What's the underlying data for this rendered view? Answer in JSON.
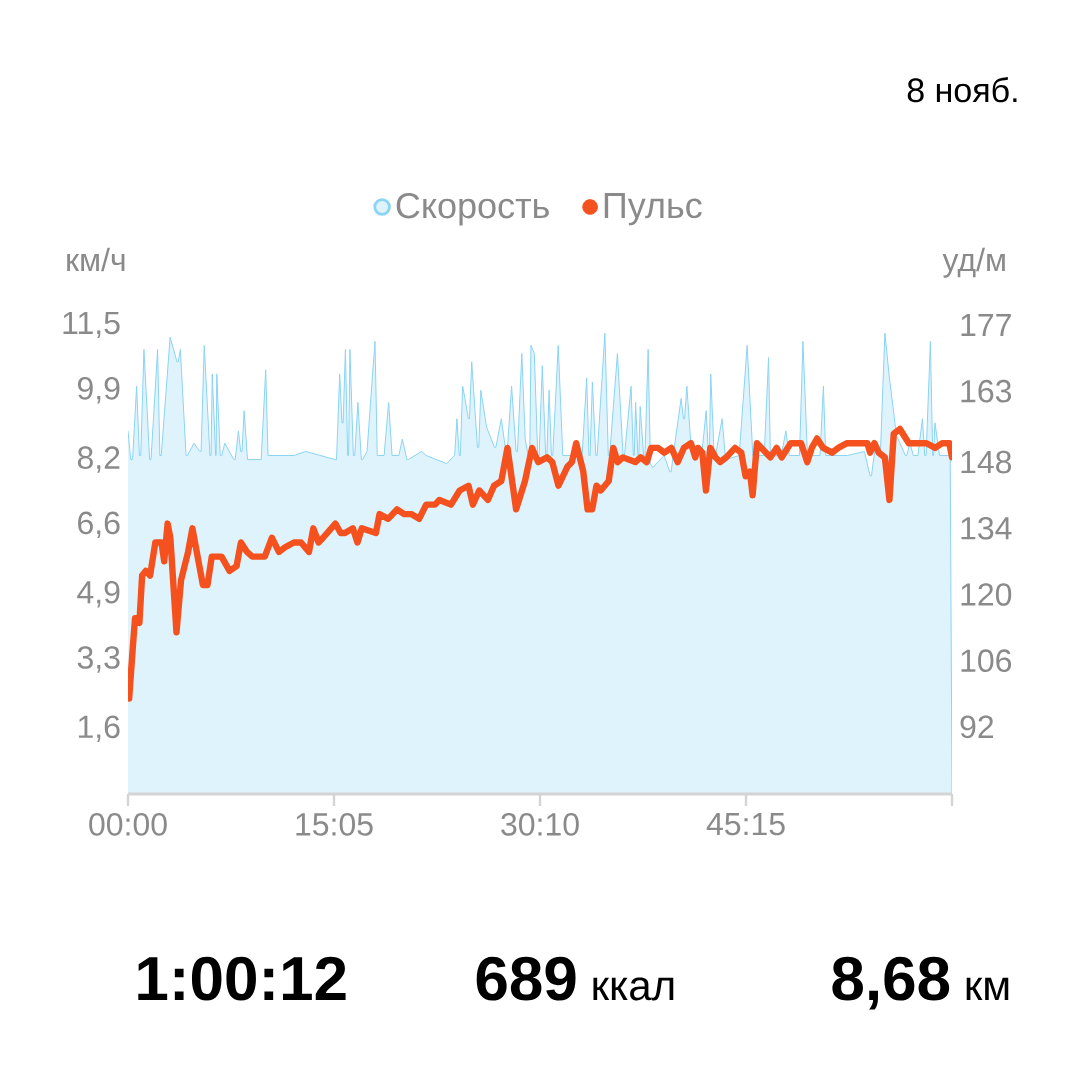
{
  "chart_data": {
    "type": "area",
    "ylabel": "км/ч",
    "y2label": "уд/м",
    "legend": "top",
    "annotations": [
      "8 нояб.",
      "1:00:12",
      "689",
      "ккал",
      "8,68",
      "км"
    ],
    "xlim": [
      0,
      3620
    ],
    "xticks": [
      {
        "value": 0,
        "label": "00:00"
      },
      {
        "value": 905,
        "label": "15:05"
      },
      {
        "value": 1810,
        "label": "30:10"
      },
      {
        "value": 2715,
        "label": "45:15"
      },
      {
        "value": 3620,
        "label": null
      }
    ],
    "ylim": [
      0,
      11.5
    ],
    "yticks": [
      {
        "value": 1.6,
        "label": "1,6"
      },
      {
        "value": 3.3,
        "label": "3,3"
      },
      {
        "value": 4.9,
        "label": "4,9"
      },
      {
        "value": 6.6,
        "label": "6,6"
      },
      {
        "value": 8.2,
        "label": "8,2"
      },
      {
        "value": 9.9,
        "label": "9,9"
      },
      {
        "value": 11.5,
        "label": "11,5"
      }
    ],
    "y2lim": [
      77.8,
      177
    ],
    "y2ticks": [
      92,
      106,
      120,
      134,
      148,
      163,
      177
    ],
    "series": [
      {
        "name": "Скорость",
        "color": "#dff3fc",
        "x": [
          0,
          12,
          20,
          38,
          50,
          56,
          70,
          95,
          101,
          130,
          140,
          146,
          185,
          200,
          215,
          221,
          230,
          255,
          261,
          290,
          315,
          321,
          335,
          360,
          365,
          370,
          385,
          387,
          390,
          405,
          412,
          425,
          465,
          471,
          485,
          495,
          501,
          510,
          525,
          585,
          605,
          615,
          730,
          780,
          910,
          916,
          930,
          940,
          945,
          955,
          965,
          969,
          975,
          990,
          996,
          1010,
          1025,
          1031,
          1050,
          1085,
          1095,
          1125,
          1145,
          1160,
          1190,
          1205,
          1225,
          1231,
          1290,
          1310,
          1400,
          1435,
          1445,
          1455,
          1460,
          1470,
          1480,
          1495,
          1500,
          1510,
          1535,
          1541,
          1550,
          1575,
          1610,
          1616,
          1640,
          1660,
          1666,
          1685,
          1705,
          1711,
          1730,
          1745,
          1758,
          1765,
          1770,
          1785,
          1800,
          1806,
          1820,
          1835,
          1840,
          1850,
          1860,
          1866,
          1890,
          1910,
          1970,
          1995,
          2015,
          2025,
          2030,
          2040,
          2055,
          2061,
          2095,
          2110,
          2116,
          2150,
          2175,
          2181,
          2210,
          2220,
          2224,
          2230,
          2240,
          2244,
          2250,
          2265,
          2271,
          2285,
          2295,
          2305,
          2355,
          2380,
          2386,
          2395,
          2430,
          2440,
          2445,
          2455,
          2475,
          2520,
          2540,
          2550,
          2554,
          2560,
          2575,
          2581,
          2610,
          2625,
          2685,
          2720,
          2745,
          2795,
          2814,
          2822,
          2870,
          2890,
          2905,
          2950,
          2965,
          2985,
          3040,
          3055,
          3065,
          3160,
          3235,
          3260,
          3266,
          3280,
          3305,
          3325,
          3345,
          3365,
          3375,
          3415,
          3421,
          3435,
          3450,
          3470,
          3490,
          3500,
          3506,
          3525,
          3535,
          3539,
          3545,
          3565,
          3612,
          3620
        ],
        "values": [
          8.9,
          8.2,
          8.2,
          10.0,
          8.3,
          8.3,
          10.9,
          8.2,
          8.2,
          10.9,
          8.3,
          8.3,
          11.2,
          10.9,
          10.6,
          10.6,
          10.9,
          8.3,
          8.3,
          8.6,
          8.4,
          8.4,
          11.0,
          8.3,
          8.3,
          10.3,
          8.3,
          8.3,
          10.3,
          8.3,
          8.3,
          8.6,
          8.2,
          8.2,
          8.9,
          8.4,
          8.4,
          9.4,
          8.2,
          8.2,
          10.4,
          8.3,
          8.3,
          8.4,
          8.2,
          8.2,
          10.3,
          9.1,
          9.1,
          10.9,
          8.3,
          8.3,
          10.9,
          8.3,
          8.3,
          9.6,
          8.2,
          8.2,
          8.4,
          11.1,
          8.3,
          8.3,
          9.6,
          8.3,
          8.3,
          8.7,
          8.2,
          8.2,
          8.4,
          8.3,
          8.1,
          8.3,
          9.2,
          8.3,
          8.3,
          10.0,
          9.7,
          9.2,
          9.2,
          10.6,
          8.5,
          8.5,
          9.9,
          9.0,
          8.5,
          8.5,
          9.2,
          8.4,
          8.4,
          10.0,
          8.4,
          8.4,
          10.8,
          8.7,
          8.3,
          8.3,
          11.0,
          10.8,
          8.3,
          8.3,
          10.5,
          8.3,
          8.3,
          9.9,
          8.3,
          8.3,
          11.0,
          8.3,
          8.3,
          8.3,
          10.2,
          8.3,
          8.3,
          10.1,
          8.3,
          8.3,
          11.3,
          8.3,
          8.3,
          10.8,
          8.3,
          8.3,
          10.0,
          8.3,
          8.3,
          9.6,
          8.3,
          8.3,
          9.5,
          8.3,
          8.3,
          10.9,
          8.1,
          8.0,
          8.3,
          7.9,
          7.9,
          8.3,
          9.7,
          9.2,
          9.2,
          10.0,
          8.4,
          8.3,
          9.4,
          8.3,
          8.3,
          10.3,
          8.3,
          8.3,
          9.2,
          8.2,
          8.3,
          11.0,
          8.3,
          8.3,
          10.7,
          8.3,
          8.3,
          8.9,
          8.3,
          8.3,
          11.1,
          8.3,
          8.3,
          10.0,
          8.3,
          8.3,
          8.4,
          7.8,
          7.8,
          8.4,
          8.3,
          11.3,
          10.2,
          9.3,
          8.8,
          8.3,
          8.3,
          8.6,
          8.3,
          8.3,
          9.2,
          8.3,
          8.3,
          11.1,
          8.3,
          8.3,
          9.1,
          8.3,
          8.3,
          0
        ]
      },
      {
        "name": "Пульс",
        "type": "line",
        "axis": "y2",
        "color": "#f4511e",
        "x": [
          5,
          23,
          31,
          50,
          62,
          78,
          97,
          120,
          147,
          159,
          174,
          186,
          213,
          233,
          264,
          283,
          302,
          329,
          349,
          368,
          411,
          446,
          477,
          496,
          523,
          546,
          601,
          632,
          663,
          690,
          729,
          760,
          795,
          814,
          837,
          857,
          911,
          934,
          953,
          988,
          1008,
          1027,
          1089,
          1105,
          1143,
          1182,
          1213,
          1244,
          1279,
          1310,
          1349,
          1368,
          1419,
          1457,
          1496,
          1515,
          1543,
          1581,
          1608,
          1640,
          1667,
          1705,
          1744,
          1775,
          1802,
          1841,
          1864,
          1891,
          1930,
          1950,
          1969,
          2000,
          2019,
          2039,
          2058,
          2077,
          2112,
          2132,
          2151,
          2174,
          2229,
          2252,
          2279,
          2298,
          2329,
          2356,
          2387,
          2415,
          2442,
          2473,
          2492,
          2504,
          2523,
          2539,
          2558,
          2581,
          2601,
          2628,
          2667,
          2694,
          2713,
          2732,
          2744,
          2763,
          2783,
          2822,
          2849,
          2872,
          2911,
          2957,
          2984,
          3004,
          3027,
          3054,
          3093,
          3120,
          3159,
          3198,
          3248,
          3260,
          3279,
          3298,
          3325,
          3345,
          3364,
          3391,
          3430,
          3469,
          3508,
          3546,
          3577,
          3608,
          3620
        ],
        "values": [
          98,
          110,
          115,
          114,
          124,
          125,
          124,
          131,
          131,
          127,
          135,
          132,
          112,
          123,
          129,
          134,
          129,
          122,
          122,
          128,
          128,
          125,
          126,
          131,
          129,
          128,
          128,
          132,
          129,
          130,
          131,
          131,
          129,
          134,
          131,
          132,
          135,
          133,
          133,
          134,
          131,
          134,
          133,
          137,
          136,
          138,
          137,
          137,
          136,
          139,
          139,
          140,
          139,
          142,
          143,
          139,
          142,
          140,
          143,
          144,
          151,
          138,
          144,
          151,
          148,
          149,
          148,
          143,
          147,
          148,
          152,
          146,
          138,
          138,
          143,
          142,
          144,
          151,
          148,
          149,
          148,
          149,
          148,
          151,
          151,
          150,
          151,
          148,
          151,
          152,
          149,
          151,
          150,
          142,
          151,
          149,
          148,
          149,
          151,
          150,
          145,
          146,
          141,
          152,
          151,
          149,
          151,
          149,
          152,
          152,
          148,
          151,
          153,
          151,
          150,
          151,
          152,
          152,
          152,
          150,
          152,
          150,
          149,
          140,
          154,
          155,
          152,
          152,
          152,
          151,
          152,
          152,
          149
        ]
      }
    ]
  }
}
